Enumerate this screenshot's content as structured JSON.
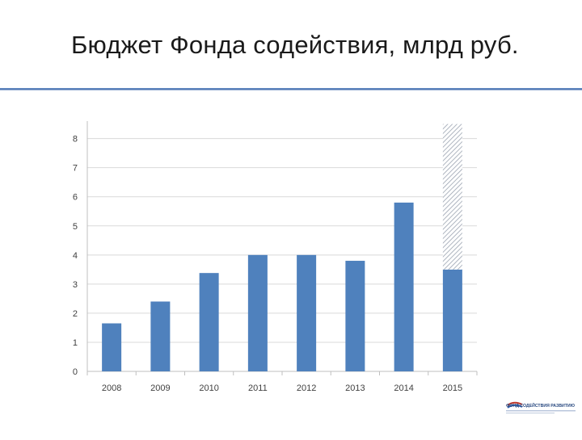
{
  "slide": {
    "title": "Бюджет Фонда содействия, млрд руб."
  },
  "colors": {
    "bar": "#4f81bd",
    "axis": "#bfbfbf",
    "gridline": "#d9d9d9",
    "hatch": "#9aa3b0",
    "title_rule": "#4a72b0"
  },
  "chart_data": {
    "type": "bar",
    "title": "",
    "xlabel": "",
    "ylabel": "",
    "categories": [
      "2008",
      "2009",
      "2010",
      "2011",
      "2012",
      "2013",
      "2014",
      "2015"
    ],
    "series": [
      {
        "values": [
          1.65,
          2.4,
          3.38,
          4.0,
          4.0,
          3.8,
          5.8,
          3.5
        ]
      },
      {
        "values": [
          0,
          0,
          0,
          0,
          0,
          0,
          0,
          5.0
        ],
        "style": "hatched",
        "stacked_on": 0
      }
    ],
    "ylim": [
      0,
      8.6
    ],
    "yticks": [
      "0",
      "1",
      "2",
      "3",
      "4",
      "5",
      "6",
      "7",
      "8"
    ],
    "grid": true,
    "legend": "none"
  },
  "logo": {
    "icon": "fund-logo-icon",
    "text": "ФОНД СОДЕЙСТВИЯ РАЗВИТИЮ"
  }
}
